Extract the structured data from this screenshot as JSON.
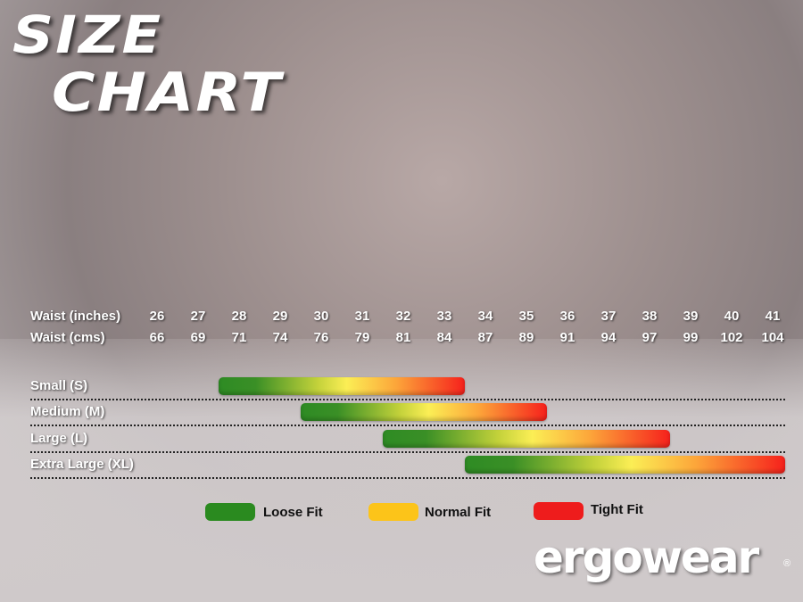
{
  "title_line1": "SIZE",
  "title_line2": "CHART",
  "chart_data": {
    "type": "range-bar",
    "row_labels": [
      "Waist (inches)",
      "Waist (cms)"
    ],
    "inches": [
      "26",
      "27",
      "28",
      "29",
      "30",
      "31",
      "32",
      "33",
      "34",
      "35",
      "36",
      "37",
      "38",
      "39",
      "40",
      "41"
    ],
    "cms": [
      "66",
      "69",
      "71",
      "74",
      "76",
      "79",
      "81",
      "84",
      "87",
      "89",
      "91",
      "94",
      "97",
      "99",
      "102",
      "104"
    ],
    "sizes": [
      {
        "label": "Small (S)",
        "from_inches": 27.5,
        "to_inches": 33.5
      },
      {
        "label": "Medium (M)",
        "from_inches": 29.5,
        "to_inches": 35.5
      },
      {
        "label": "Large (L)",
        "from_inches": 31.5,
        "to_inches": 38.5
      },
      {
        "label": "Extra Large (XL)",
        "from_inches": 33.5,
        "to_inches": 41.3
      }
    ],
    "legend": [
      {
        "label": "Loose Fit",
        "color": "#2a8a1f"
      },
      {
        "label": "Normal Fit",
        "color": "#fcc419"
      },
      {
        "label": "Tight Fit",
        "color": "#ee1c1c"
      }
    ]
  },
  "logo": {
    "text": "ergowear",
    "mark": "®"
  }
}
